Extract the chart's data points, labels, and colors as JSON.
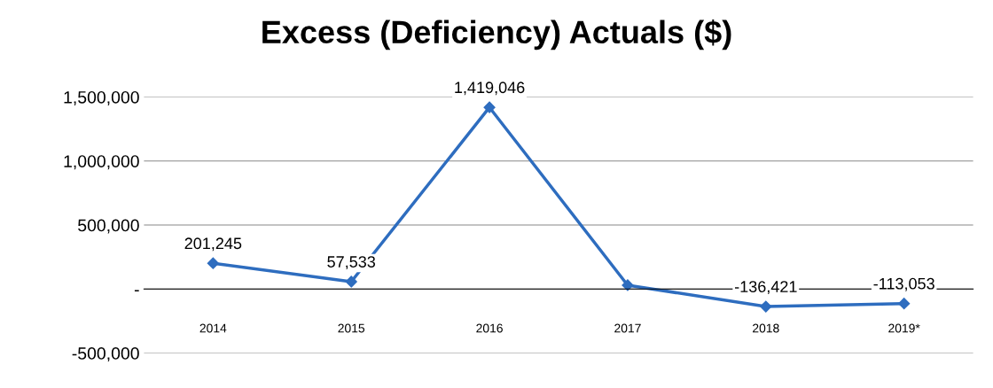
{
  "chart_data": {
    "type": "line",
    "title": "Excess (Deficiency) Actuals ($)",
    "categories": [
      "2014",
      "2015",
      "2016",
      "2017",
      "2018",
      "2019*"
    ],
    "series": [
      {
        "color": "#2e6dbf",
        "values": [
          201245,
          57533,
          1419046,
          30000,
          -136421,
          -113053
        ],
        "value_labels": [
          "201,245",
          "57,533",
          "1,419,046",
          null,
          "-136,421",
          "-113,053"
        ]
      }
    ],
    "ylim": [
      -500000,
      1500000
    ],
    "yticks": [
      {
        "value": -500000,
        "label": "-500,000"
      },
      {
        "value": 0,
        "label": "-"
      },
      {
        "value": 500000,
        "label": "500,000"
      },
      {
        "value": 1000000,
        "label": "1,000,000"
      },
      {
        "value": 1500000,
        "label": "1,500,000"
      }
    ],
    "grid": "y",
    "legend": false,
    "marker": "diamond",
    "line_style": "solid"
  }
}
